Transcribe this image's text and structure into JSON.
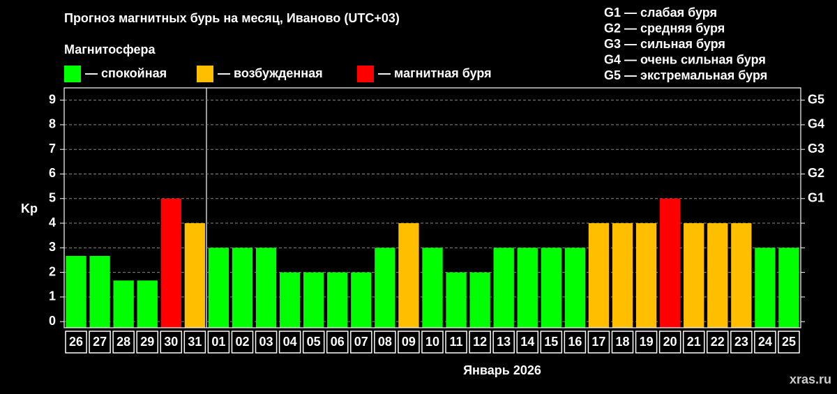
{
  "chart_data": {
    "type": "bar",
    "title": "Прогноз магнитных бурь на месяц, Иваново (UTC+03)",
    "legend_title": "Магнитосфера",
    "legend": [
      {
        "name": "— спокойная",
        "color": "#00ff00"
      },
      {
        "name": "— возбужденная",
        "color": "#ffbf00"
      },
      {
        "name": "— магнитная буря",
        "color": "#ff0000"
      }
    ],
    "storm_scale": [
      "G1 — слабая буря",
      "G2 — средняя буря",
      "G3 — сильная буря",
      "G4 — очень сильная буря",
      "G5 — экстремальная буря"
    ],
    "y_label": "Kp",
    "x_label": "Январь 2026",
    "source": "xras.ru",
    "categories": [
      "26",
      "27",
      "28",
      "29",
      "30",
      "31",
      "01",
      "02",
      "03",
      "04",
      "05",
      "06",
      "07",
      "08",
      "09",
      "10",
      "11",
      "12",
      "13",
      "14",
      "15",
      "16",
      "17",
      "18",
      "19",
      "20",
      "21",
      "22",
      "23",
      "24",
      "25"
    ],
    "values": [
      2.67,
      2.67,
      1.67,
      1.67,
      5,
      4,
      3,
      3,
      3,
      2,
      2,
      2,
      2,
      3,
      4,
      3,
      2,
      2,
      3,
      3,
      3,
      3,
      4,
      4,
      4,
      5,
      4,
      4,
      4,
      3,
      3
    ],
    "colors": [
      "#00ff00",
      "#00ff00",
      "#00ff00",
      "#00ff00",
      "#ff0000",
      "#ffbf00",
      "#00ff00",
      "#00ff00",
      "#00ff00",
      "#00ff00",
      "#00ff00",
      "#00ff00",
      "#00ff00",
      "#00ff00",
      "#ffbf00",
      "#00ff00",
      "#00ff00",
      "#00ff00",
      "#00ff00",
      "#00ff00",
      "#00ff00",
      "#00ff00",
      "#ffbf00",
      "#ffbf00",
      "#ffbf00",
      "#ff0000",
      "#ffbf00",
      "#ffbf00",
      "#ffbf00",
      "#00ff00",
      "#00ff00"
    ],
    "ylim": [
      -0.25,
      9.5
    ],
    "yticks": [
      0,
      1,
      2,
      3,
      4,
      5,
      6,
      7,
      8,
      9
    ],
    "y2lim": [
      -0.25,
      9.5
    ],
    "y2ticks": [
      {
        "value": 5,
        "label": "G1"
      },
      {
        "value": 6,
        "label": "G2"
      },
      {
        "value": 7,
        "label": "G3"
      },
      {
        "value": 8,
        "label": "G4"
      },
      {
        "value": 9,
        "label": "G5"
      }
    ],
    "grid": true
  }
}
